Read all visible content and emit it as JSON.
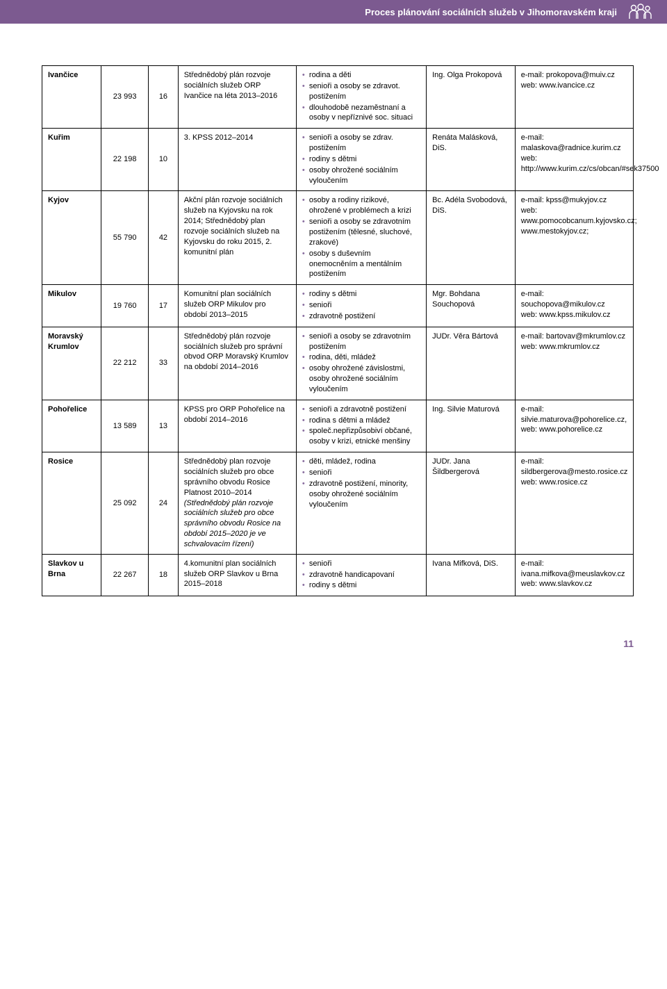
{
  "header": {
    "title": "Proces plánování sociálních služeb v Jihomoravském kraji"
  },
  "page_number": "11",
  "table_colors": {
    "border": "#000000",
    "header_bg": "#7c5a90",
    "bullet": "#8a6fa0"
  },
  "rows": [
    {
      "city": "Ivančice",
      "pop": "23 993",
      "count": "16",
      "plan": "Střednědobý plán rozvoje sociálních služeb ORP Ivančice na léta 2013–2016",
      "targets": [
        "rodina a děti",
        "senioři a osoby se zdravot. postižením",
        "dlouhodobě nezaměstnaní a osoby v nepříznivé soc. situaci"
      ],
      "person": "Ing. Olga Prokopová",
      "contact": "e-mail: prokopova@muiv.cz\nweb: www.ivancice.cz"
    },
    {
      "city": "Kuřim",
      "pop": "22 198",
      "count": "10",
      "plan": "3. KPSS 2012–2014",
      "targets": [
        "senioři a osoby se zdrav. postižením",
        "rodiny s dětmi",
        "osoby ohrožené sociálním vyloučením"
      ],
      "person": "Renáta Malásková, DiS.",
      "contact": "e-mail: malaskova@radnice.kurim.cz\nweb: http://www.kurim.cz/cs/obcan/#sek37500"
    },
    {
      "city": "Kyjov",
      "pop": "55 790",
      "count": "42",
      "plan": "Akční plán rozvoje sociálních služeb na Kyjovsku na rok 2014;\nStřednědobý plan rozvoje sociálních služeb na Kyjovsku do roku 2015, 2. komunitní plán",
      "targets": [
        "osoby a rodiny rizikové, ohrožené v problémech a krizi",
        "senioři a osoby se zdravotním postižením (tělesné, sluchové, zrakové)",
        "osoby s duševním onemocněním a mentálním postižením"
      ],
      "person": "Bc. Adéla Svobodová, DiS.",
      "contact": "e-mail: kpss@mukyjov.cz\nweb: www.pomocobcanum.kyjovsko.cz; www.mestokyjov.cz;"
    },
    {
      "city": "Mikulov",
      "pop": "19 760",
      "count": "17",
      "plan": "Komunitní plan sociálních služeb ORP Mikulov pro období 2013–2015",
      "targets": [
        "rodiny s dětmi",
        "senioři",
        "zdravotně postižení"
      ],
      "person": "Mgr. Bohdana Souchopová",
      "contact": "e-mail: souchopova@mikulov.cz\nweb: www.kpss.mikulov.cz"
    },
    {
      "city": "Moravský Krumlov",
      "pop": "22 212",
      "count": "33",
      "plan": "Střednědobý plán rozvoje sociálních služeb pro správní obvod ORP Moravský Krumlov na období 2014–2016",
      "targets": [
        "senioři a osoby se zdravotním postižením",
        "rodina, děti, mládež",
        "osoby ohrožené závislostmi, osoby ohrožené sociálním vyloučením"
      ],
      "person": "JUDr. Věra Bártová",
      "contact": "e-mail: bartovav@mkrumlov.cz\nweb: www.mkrumlov.cz"
    },
    {
      "city": "Pohořelice",
      "pop": "13 589",
      "count": "13",
      "plan": "KPSS pro ORP Pohořelice na období 2014–2016",
      "targets": [
        "senioři a zdravotně postižení",
        "rodina s dětmi a mládež",
        "společ.nepřizpůsobiví občané, osoby v krizi, etnické menšiny"
      ],
      "person": "Ing. Silvie Maturová",
      "contact": "e-mail: silvie.maturova@pohorelice.cz,\nweb: www.pohorelice.cz"
    },
    {
      "city": "Rosice",
      "pop": "25 092",
      "count": "24",
      "plan_html": "Střednědobý plan rozvoje sociálních služeb pro obce správního obvodu Rosice<br>Platnost 2010–2014<br><span class=\"italic\">(Střednědobý plán rozvoje sociálních služeb pro obce správního obvodu Rosice na období 2015–2020 je ve schvalovacím řízení)</span>",
      "targets": [
        "děti, mládež, rodina",
        "senioři",
        "zdravotně postižení, minority, osoby ohrožené sociálním vyloučením"
      ],
      "person": "JUDr. Jana Šildbergerová",
      "contact": "e-mail: sildbergerova@mesto.rosice.cz\nweb: www.rosice.cz"
    },
    {
      "city": "Slavkov u Brna",
      "pop": "22 267",
      "count": "18",
      "plan": "4.komunitní plan sociálních služeb ORP Slavkov u Brna 2015–2018",
      "targets": [
        "senioři",
        "zdravotně handicapovaní",
        "rodiny s dětmi"
      ],
      "person": "Ivana Mifková, DiS.",
      "contact": "e-mail: ivana.mifkova@meuslavkov.cz\nweb: www.slavkov.cz"
    }
  ]
}
